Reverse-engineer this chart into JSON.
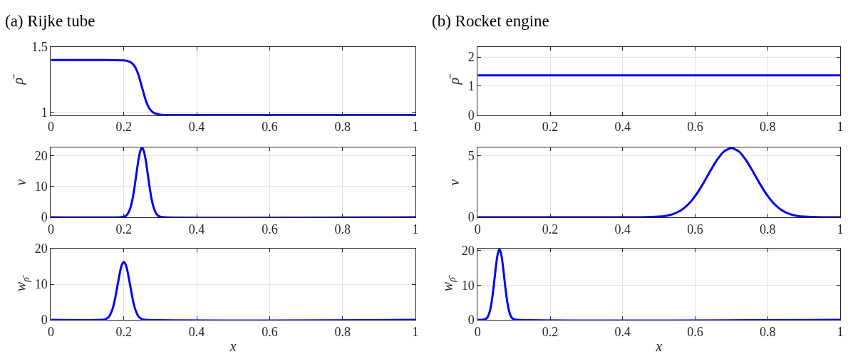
{
  "chart_data": [
    {
      "type": "line",
      "title": "(a) Rijke tube",
      "ylabel": "ρ̄",
      "x": [
        0,
        0.15,
        0.2,
        0.21,
        0.22,
        0.23,
        0.24,
        0.25,
        0.26,
        0.27,
        0.28,
        0.29,
        0.3,
        0.32,
        0.35,
        1
      ],
      "series": [
        {
          "color": "#0000ff",
          "values": [
            1.4,
            1.4,
            1.397,
            1.392,
            1.38,
            1.35,
            1.287,
            1.19,
            1.093,
            1.03,
            1.0,
            0.988,
            0.983,
            0.98,
            0.98,
            0.98
          ]
        }
      ],
      "xlim": [
        0,
        1
      ],
      "xticks": [
        0,
        0.2,
        0.4,
        0.6,
        0.8,
        1
      ],
      "ylim": [
        0.978,
        1.5
      ],
      "yticks": [
        1,
        1.5
      ],
      "grid": true
    },
    {
      "type": "line",
      "title": "(b) Rocket engine",
      "ylabel": "ρ̄",
      "x": [
        0,
        1
      ],
      "series": [
        {
          "color": "#0000ff",
          "values": [
            1.37,
            1.37
          ]
        }
      ],
      "xlim": [
        0,
        1
      ],
      "xticks": [
        0,
        0.2,
        0.4,
        0.6,
        0.8,
        1
      ],
      "ylim": [
        0,
        2.35
      ],
      "yticks": [
        0,
        1,
        2
      ],
      "grid": true
    },
    {
      "type": "line",
      "ylabel": "v",
      "x": [
        0,
        0.19,
        0.2,
        0.205,
        0.21,
        0.215,
        0.22,
        0.225,
        0.23,
        0.235,
        0.24,
        0.245,
        0.25,
        0.255,
        0.26,
        0.265,
        0.27,
        0.275,
        0.28,
        0.285,
        0.29,
        0.295,
        0.3,
        0.31,
        1
      ],
      "series": [
        {
          "color": "#0000ff",
          "values": [
            0,
            0,
            0.2,
            0.4,
            1.0,
            2.1,
            3.9,
            6.6,
            10.3,
            14.5,
            18.5,
            21.4,
            22.5,
            21.4,
            18.5,
            14.5,
            10.3,
            6.6,
            3.9,
            2.1,
            1.0,
            0.4,
            0.2,
            0,
            0
          ]
        }
      ],
      "xlim": [
        0,
        1
      ],
      "xticks": [
        0,
        0.2,
        0.4,
        0.6,
        0.8,
        1
      ],
      "ylim": [
        0,
        22.6
      ],
      "yticks": [
        0,
        10,
        20
      ],
      "grid": true
    },
    {
      "type": "line",
      "ylabel": "v",
      "x": [
        0,
        0.45,
        0.5,
        0.52,
        0.54,
        0.56,
        0.58,
        0.6,
        0.62,
        0.64,
        0.66,
        0.68,
        0.7,
        0.72,
        0.74,
        0.76,
        0.78,
        0.8,
        0.82,
        0.84,
        0.86,
        0.88,
        0.9,
        0.95,
        1
      ],
      "series": [
        {
          "color": "#0000ff",
          "values": [
            0,
            0,
            0.05,
            0.12,
            0.27,
            0.55,
            1.02,
            1.72,
            2.63,
            3.66,
            4.63,
            5.34,
            5.6,
            5.34,
            4.63,
            3.66,
            2.63,
            1.72,
            1.02,
            0.55,
            0.27,
            0.12,
            0.05,
            0,
            0
          ]
        }
      ],
      "xlim": [
        0,
        1
      ],
      "xticks": [
        0,
        0.2,
        0.4,
        0.6,
        0.8,
        1
      ],
      "ylim": [
        0,
        5.65
      ],
      "yticks": [
        0,
        5
      ],
      "grid": true
    },
    {
      "type": "line",
      "xlabel": "x",
      "ylabel": "w$_{ρ̄}$",
      "x": [
        0,
        0.14,
        0.15,
        0.16,
        0.165,
        0.17,
        0.175,
        0.18,
        0.185,
        0.19,
        0.195,
        0.2,
        0.205,
        0.21,
        0.215,
        0.22,
        0.225,
        0.23,
        0.235,
        0.24,
        0.25,
        0.26,
        1
      ],
      "series": [
        {
          "color": "#0000ff",
          "values": [
            0,
            0,
            0.2,
            1.0,
            2.0,
            3.4,
            5.5,
            8.2,
            11.0,
            13.7,
            15.6,
            16.3,
            15.6,
            13.7,
            11.0,
            8.2,
            5.5,
            3.4,
            2.0,
            1.0,
            0.2,
            0,
            0
          ]
        }
      ],
      "xlim": [
        0,
        1
      ],
      "xticks": [
        0,
        0.2,
        0.4,
        0.6,
        0.8,
        1
      ],
      "ylim": [
        0,
        20
      ],
      "yticks": [
        0,
        10,
        20
      ],
      "grid": true
    },
    {
      "type": "line",
      "xlabel": "x",
      "ylabel": "w$_{ρ̄}$",
      "x": [
        0,
        0.01,
        0.02,
        0.025,
        0.03,
        0.035,
        0.04,
        0.045,
        0.05,
        0.055,
        0.06,
        0.065,
        0.07,
        0.075,
        0.08,
        0.085,
        0.09,
        0.095,
        0.1,
        0.11,
        1
      ],
      "series": [
        {
          "color": "#0000ff",
          "values": [
            0,
            0,
            0.2,
            0.5,
            1.4,
            3.2,
            6.3,
            10.5,
            15.2,
            18.9,
            20.4,
            18.9,
            15.2,
            10.5,
            6.3,
            3.2,
            1.4,
            0.5,
            0.2,
            0,
            0
          ]
        }
      ],
      "xlim": [
        0,
        1
      ],
      "xticks": [
        0,
        0.2,
        0.4,
        0.6,
        0.8,
        1
      ],
      "ylim": [
        0,
        20.5
      ],
      "yticks": [
        0,
        10,
        20
      ],
      "grid": true
    }
  ]
}
